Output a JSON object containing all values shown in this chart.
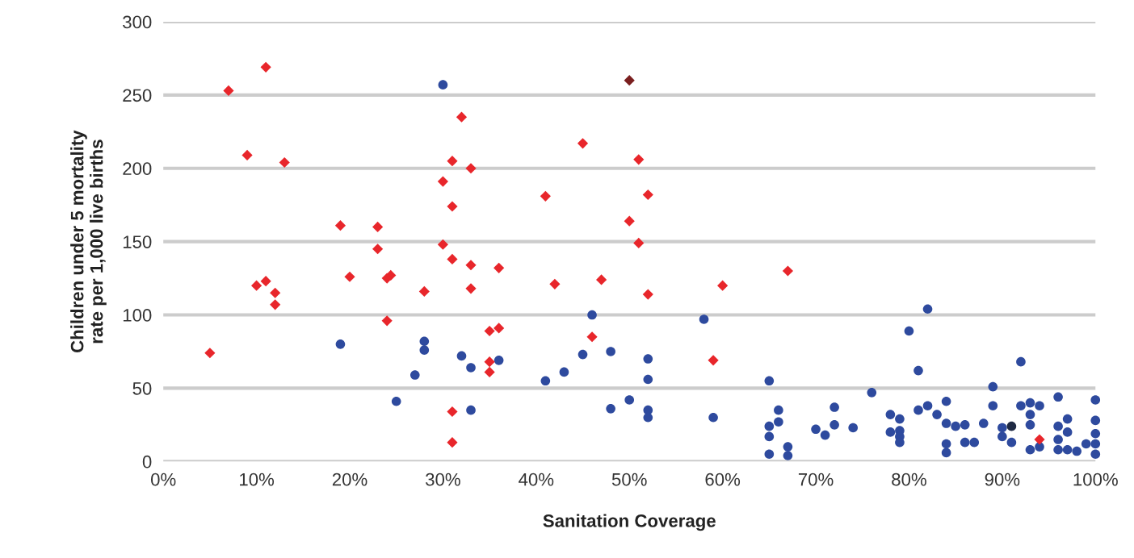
{
  "chart_data": {
    "type": "scatter",
    "xlabel": "Sanitation Coverage",
    "ylabel": "Children under 5 mortality\nrate per 1,000 live births",
    "xlim": [
      0,
      100
    ],
    "ylim": [
      0,
      300
    ],
    "xticks": [
      {
        "value": 0,
        "label": "0%"
      },
      {
        "value": 10,
        "label": "10%"
      },
      {
        "value": 20,
        "label": "20%"
      },
      {
        "value": 30,
        "label": "30%"
      },
      {
        "value": 40,
        "label": "40%"
      },
      {
        "value": 50,
        "label": "50%"
      },
      {
        "value": 60,
        "label": "60%"
      },
      {
        "value": 70,
        "label": "70%"
      },
      {
        "value": 80,
        "label": "80%"
      },
      {
        "value": 90,
        "label": "90%"
      },
      {
        "value": 100,
        "label": "100%"
      }
    ],
    "yticks": [
      0,
      50,
      100,
      150,
      200,
      250,
      300
    ],
    "grid": "y",
    "legend": false,
    "series": [
      {
        "color": "#2e4a9e",
        "marker": "circle",
        "x": [
          19,
          25,
          27,
          28,
          28,
          30,
          32,
          33,
          33,
          36,
          41,
          43,
          45,
          46,
          48,
          48,
          50,
          52,
          52,
          52,
          52,
          58,
          59,
          65,
          65,
          65,
          65,
          66,
          66,
          67,
          67,
          70,
          71,
          72,
          72,
          74,
          76,
          78,
          78,
          79,
          79,
          79,
          79,
          80,
          81,
          81,
          82,
          82,
          83,
          84,
          84,
          84,
          84,
          85,
          86,
          86,
          87,
          88,
          89,
          89,
          90,
          90,
          91,
          92,
          92,
          93,
          93,
          93,
          93,
          94,
          94,
          96,
          96,
          96,
          96,
          97,
          97,
          97,
          98,
          99,
          100,
          100,
          100,
          100,
          100
        ],
        "values": [
          80,
          41,
          59,
          82,
          76,
          257,
          72,
          64,
          35,
          69,
          55,
          61,
          73,
          100,
          75,
          36,
          42,
          70,
          56,
          35,
          30,
          97,
          30,
          55,
          24,
          17,
          5,
          27,
          35,
          10,
          4,
          22,
          18,
          37,
          25,
          23,
          47,
          20,
          32,
          29,
          21,
          17,
          13,
          89,
          62,
          35,
          104,
          38,
          32,
          41,
          26,
          12,
          6,
          24,
          25,
          13,
          13,
          26,
          51,
          38,
          23,
          17,
          13,
          68,
          38,
          40,
          32,
          25,
          8,
          38,
          10,
          44,
          24,
          15,
          8,
          29,
          20,
          8,
          7,
          12,
          42,
          28,
          19,
          12,
          5
        ]
      },
      {
        "color": "#1f2a44",
        "marker": "circle",
        "x": [
          91
        ],
        "values": [
          24
        ]
      },
      {
        "color": "#e8262b",
        "marker": "diamond",
        "x": [
          5,
          7,
          9,
          10,
          11,
          11,
          12,
          12,
          13,
          19,
          20,
          23,
          23,
          24.4,
          24,
          24,
          28,
          30,
          30,
          31,
          31,
          31,
          31,
          31,
          32,
          33,
          33,
          33,
          35,
          35,
          35,
          36,
          36,
          41,
          42,
          45,
          46,
          47,
          50,
          51,
          51,
          52,
          52,
          59,
          60,
          67,
          94
        ],
        "values": [
          74,
          253,
          209,
          120,
          269,
          123,
          115,
          107,
          204,
          161,
          126,
          160,
          145,
          127,
          125,
          96,
          116,
          191,
          148,
          205,
          174,
          138,
          34,
          13,
          235,
          200,
          134,
          118,
          89,
          68,
          61,
          132,
          91,
          181,
          121,
          217,
          85,
          124,
          164,
          206,
          149,
          182,
          114,
          69,
          120,
          130,
          15
        ]
      },
      {
        "color": "#7a1f1f",
        "marker": "diamond",
        "x": [
          50
        ],
        "values": [
          260
        ]
      }
    ]
  }
}
